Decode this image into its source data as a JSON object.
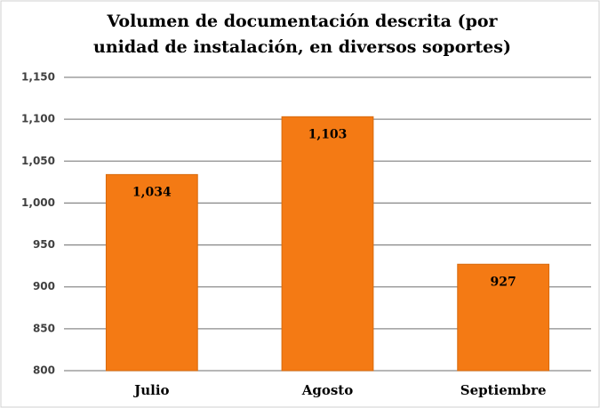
{
  "chart_data": {
    "type": "bar",
    "title": [
      "Volumen de documentación descrita (por",
      "unidad de instalación, en diversos soportes)"
    ],
    "categories": [
      "Julio",
      "Agosto",
      "Septiembre"
    ],
    "values": [
      1034,
      1103,
      927
    ],
    "value_labels": [
      "1,034",
      "1,103",
      "927"
    ],
    "color": "#f47a14",
    "ylim": [
      800,
      1150
    ],
    "yticks": [
      800,
      850,
      900,
      950,
      {
        "value": 1000,
        "label": "1,000"
      },
      {
        "value": 1050,
        "label": "1,050"
      },
      {
        "value": 1100,
        "label": "1,100"
      },
      {
        "value": 1150,
        "label": "1,150"
      }
    ],
    "grid": true
  }
}
